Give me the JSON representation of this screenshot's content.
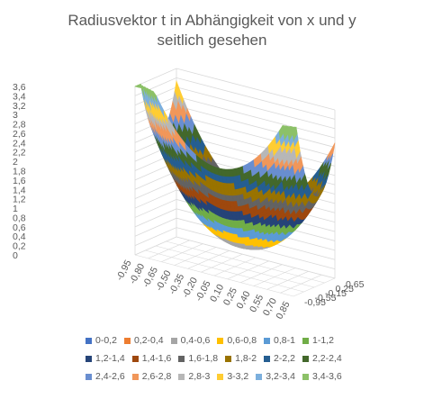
{
  "chart_data": {
    "type": "surface",
    "title_lines": [
      "Radiusvektor t in Abhängigkeit von x und y",
      "seitlich gesehen"
    ],
    "z_axis": {
      "ticks": [
        "0",
        "0,2",
        "0,4",
        "0,6",
        "0,8",
        "1",
        "1,2",
        "1,4",
        "1,6",
        "1,8",
        "2",
        "2,2",
        "2,4",
        "2,6",
        "2,8",
        "3",
        "3,2",
        "3,4",
        "3,6"
      ],
      "range": [
        0,
        3.6
      ]
    },
    "x_axis": {
      "ticks": [
        "-0,95",
        "-0,80",
        "-0,65",
        "-0,50",
        "-0,35",
        "-0,20",
        "-0,05",
        "0,10",
        "0,25",
        "0,40",
        "0,55",
        "0,70",
        "0,85"
      ]
    },
    "y_axis": {
      "ticks": [
        "0,65",
        "0,25",
        "-0,15",
        "-0,55",
        "-0,95"
      ]
    },
    "legend": [
      {
        "label": "0-0,2",
        "color": "#4472C4"
      },
      {
        "label": "0,2-0,4",
        "color": "#ED7D31"
      },
      {
        "label": "0,4-0,6",
        "color": "#A5A5A5"
      },
      {
        "label": "0,6-0,8",
        "color": "#FFC000"
      },
      {
        "label": "0,8-1",
        "color": "#5B9BD5"
      },
      {
        "label": "1-1,2",
        "color": "#70AD47"
      },
      {
        "label": "1,2-1,4",
        "color": "#264478"
      },
      {
        "label": "1,4-1,6",
        "color": "#9E480E"
      },
      {
        "label": "1,6-1,8",
        "color": "#636363"
      },
      {
        "label": "1,8-2",
        "color": "#997300"
      },
      {
        "label": "2-2,2",
        "color": "#255E91"
      },
      {
        "label": "2,2-2,4",
        "color": "#43682B"
      },
      {
        "label": "2,4-2,6",
        "color": "#698ED0"
      },
      {
        "label": "2,6-2,8",
        "color": "#F1975A"
      },
      {
        "label": "2,8-3",
        "color": "#B7B7B7"
      },
      {
        "label": "3-3,2",
        "color": "#FFCD33"
      },
      {
        "label": "3,2-3,4",
        "color": "#7CAFDD"
      },
      {
        "label": "3,4-3,6",
        "color": "#8CC168"
      }
    ]
  }
}
